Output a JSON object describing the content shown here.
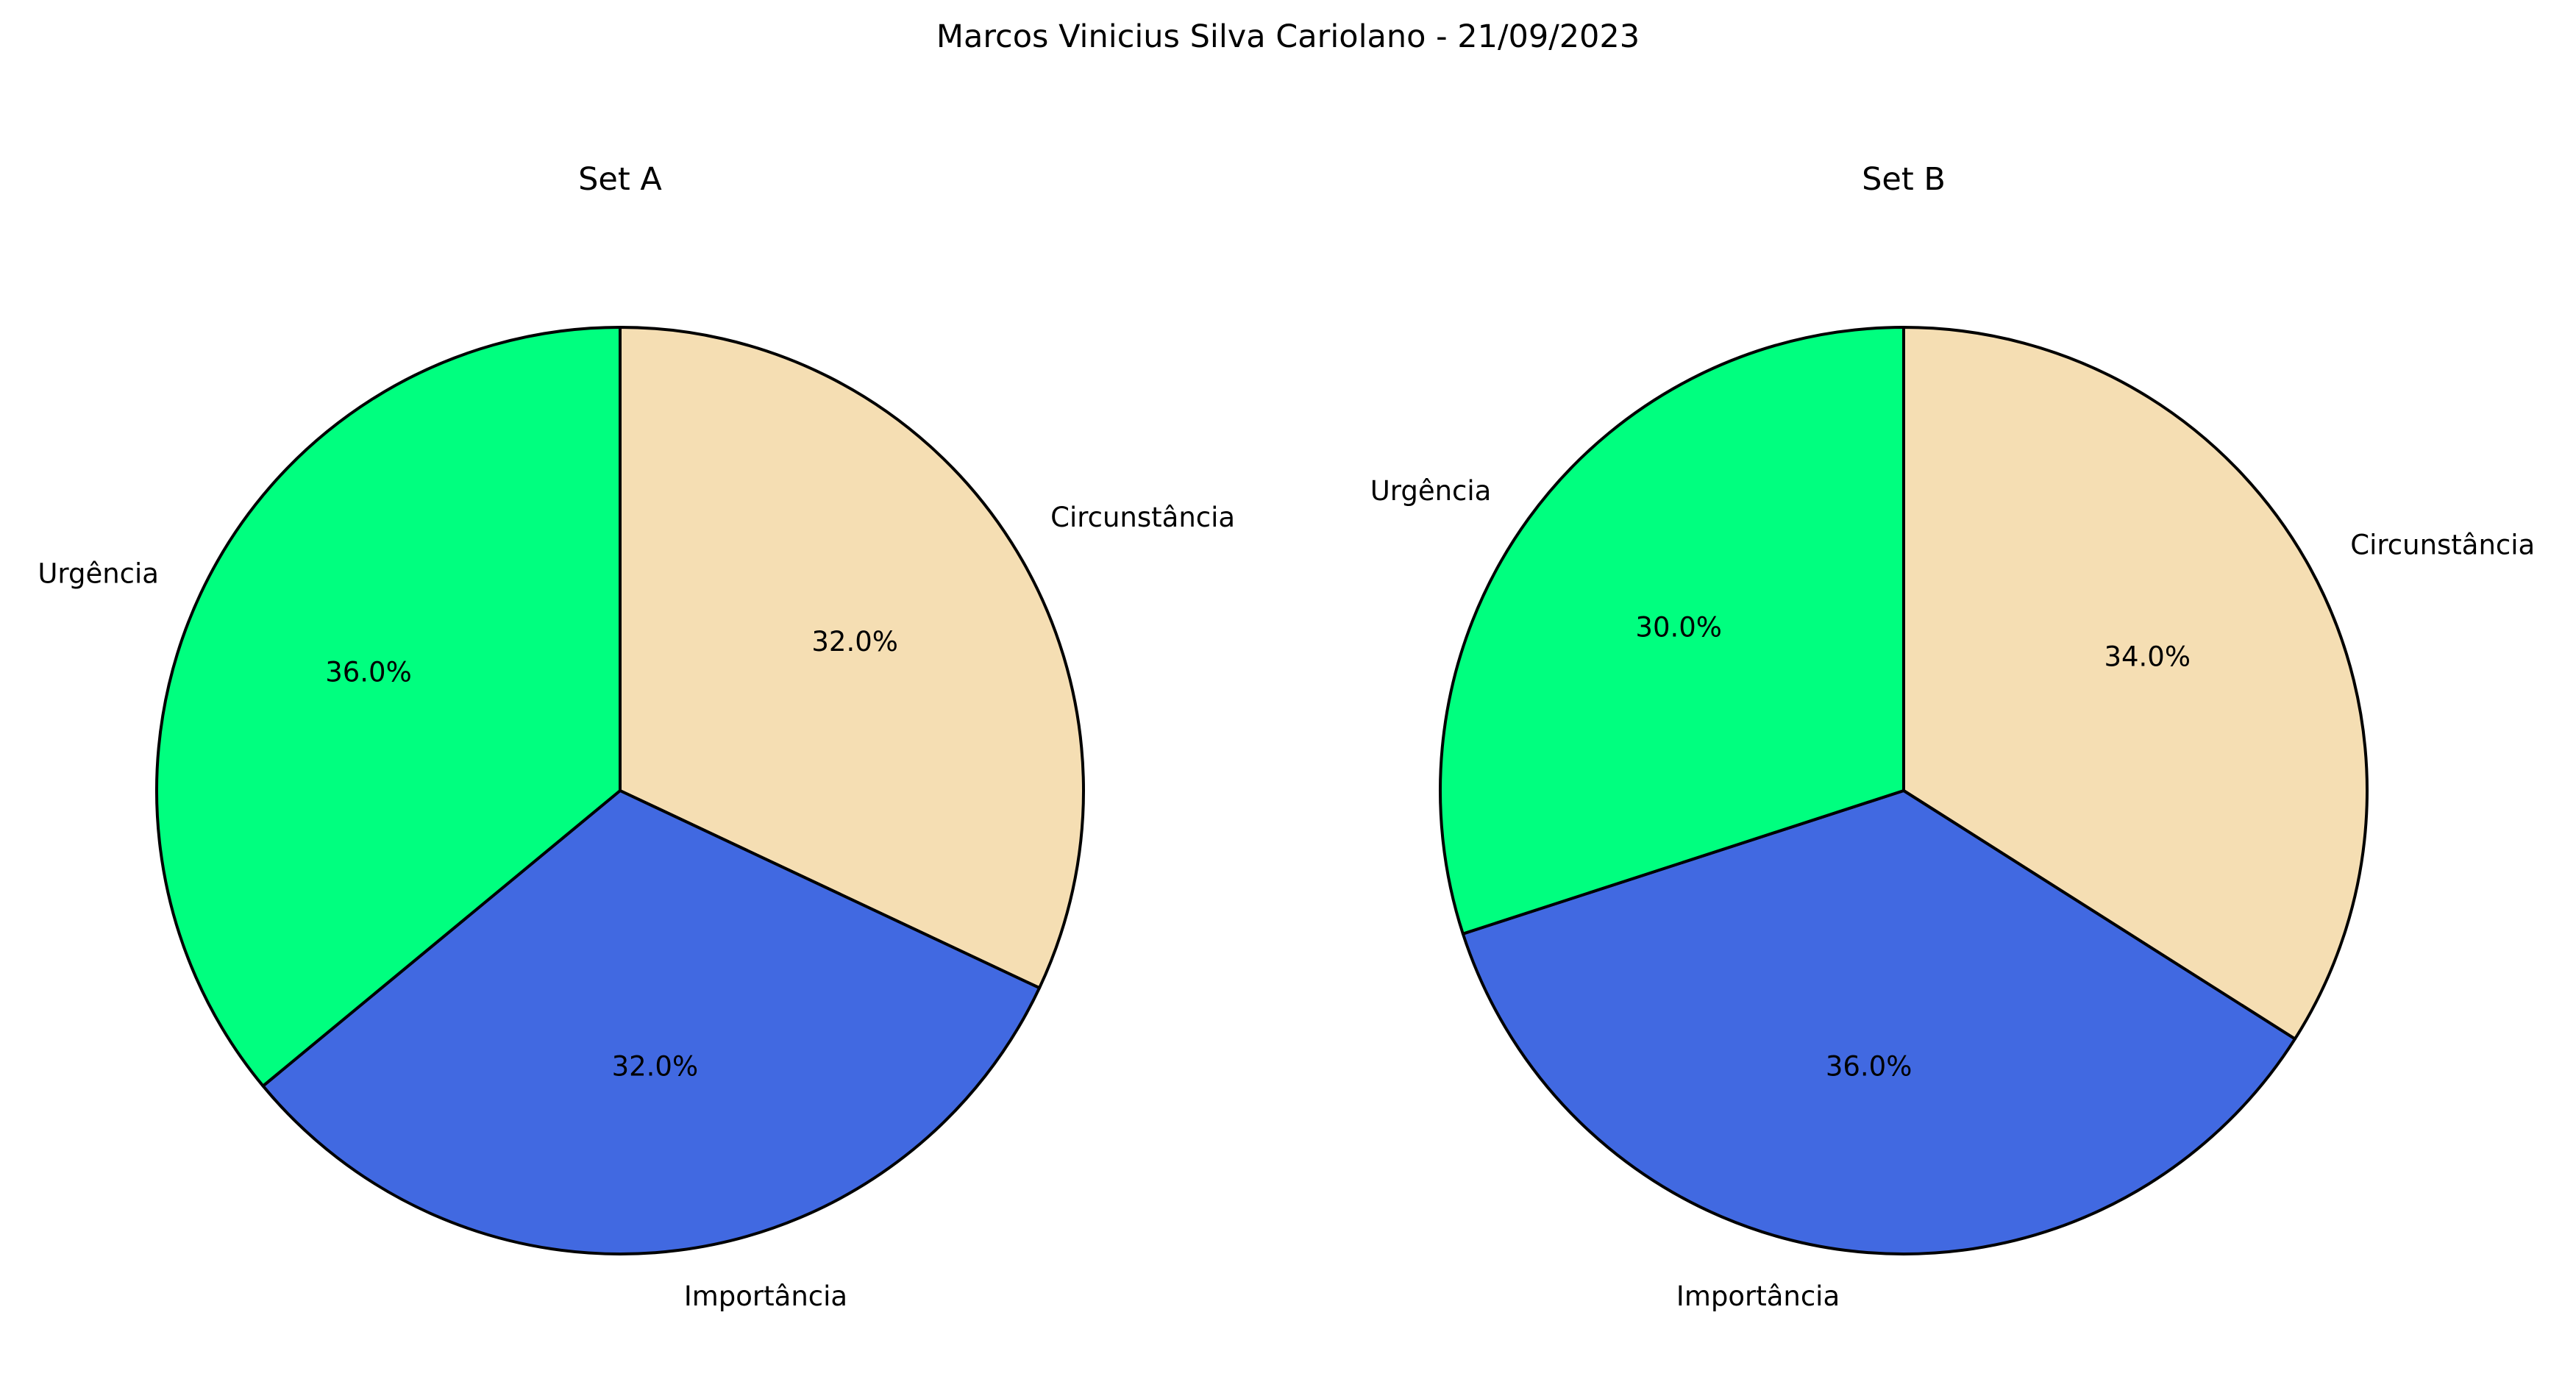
{
  "suptitle": "Marcos Vinicius Silva Cariolano - 21/09/2023",
  "chart_data": [
    {
      "type": "pie",
      "title": "Set A",
      "start_angle_deg": 90,
      "direction": "clockwise",
      "edge_color": "#000000",
      "slices": [
        {
          "label": "Circunstância",
          "value": 32.0,
          "pct_label": "32.0%",
          "color": "#F5DEB3"
        },
        {
          "label": "Importância",
          "value": 32.0,
          "pct_label": "32.0%",
          "color": "#4169E1"
        },
        {
          "label": "Urgência",
          "value": 36.0,
          "pct_label": "36.0%",
          "color": "#00FF7F"
        }
      ]
    },
    {
      "type": "pie",
      "title": "Set B",
      "start_angle_deg": 90,
      "direction": "clockwise",
      "edge_color": "#000000",
      "slices": [
        {
          "label": "Circunstância",
          "value": 34.0,
          "pct_label": "34.0%",
          "color": "#F5DEB3"
        },
        {
          "label": "Importância",
          "value": 36.0,
          "pct_label": "36.0%",
          "color": "#4169E1"
        },
        {
          "label": "Urgência",
          "value": 30.0,
          "pct_label": "30.0%",
          "color": "#00FF7F"
        }
      ]
    }
  ]
}
